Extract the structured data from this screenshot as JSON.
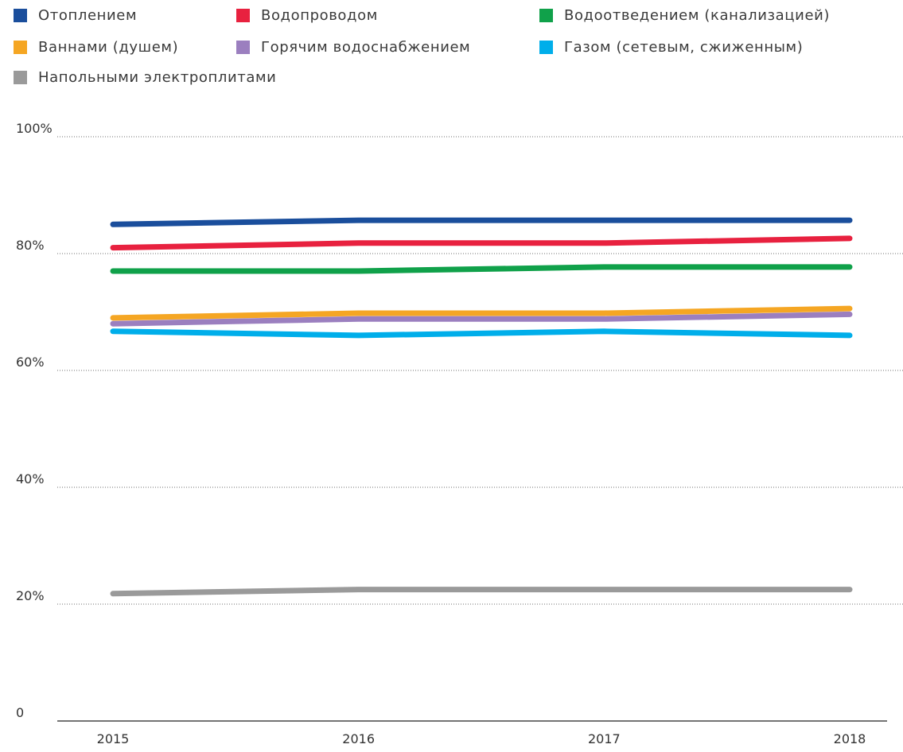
{
  "chart_data": {
    "type": "line",
    "categories": [
      "2015",
      "2016",
      "2017",
      "2018"
    ],
    "y_ticks": [
      {
        "value": 0,
        "label": "0"
      },
      {
        "value": 20,
        "label": "20%"
      },
      {
        "value": 40,
        "label": "40%"
      },
      {
        "value": 60,
        "label": "60%"
      },
      {
        "value": 80,
        "label": "80%"
      },
      {
        "value": 100,
        "label": "100%"
      }
    ],
    "ylim": [
      0,
      100
    ],
    "grid": "dotted horizontal",
    "legend_position": "top",
    "series": [
      {
        "name": "Отоплением",
        "color": "#1a4e9c",
        "values": [
          85.0,
          85.7,
          85.7,
          85.7
        ]
      },
      {
        "name": "Водопроводом",
        "color": "#e8213f",
        "values": [
          81.0,
          81.8,
          81.8,
          82.6
        ]
      },
      {
        "name": "Водоотведением (канализацией)",
        "color": "#10a14a",
        "values": [
          77.0,
          77.0,
          77.7,
          77.7
        ]
      },
      {
        "name": "Ваннами (душем)",
        "color": "#f5a623",
        "values": [
          69.0,
          69.8,
          69.8,
          70.6
        ]
      },
      {
        "name": "Горячим водоснабжением",
        "color": "#9b7fbf",
        "values": [
          68.0,
          68.8,
          68.8,
          69.6
        ]
      },
      {
        "name": "Газом (сетевым, сжиженным)",
        "color": "#00aeea",
        "values": [
          66.7,
          66.0,
          66.7,
          66.0
        ]
      },
      {
        "name": "Напольными электроплитами",
        "color": "#9a9a9a",
        "values": [
          21.8,
          22.5,
          22.5,
          22.5
        ]
      }
    ]
  }
}
